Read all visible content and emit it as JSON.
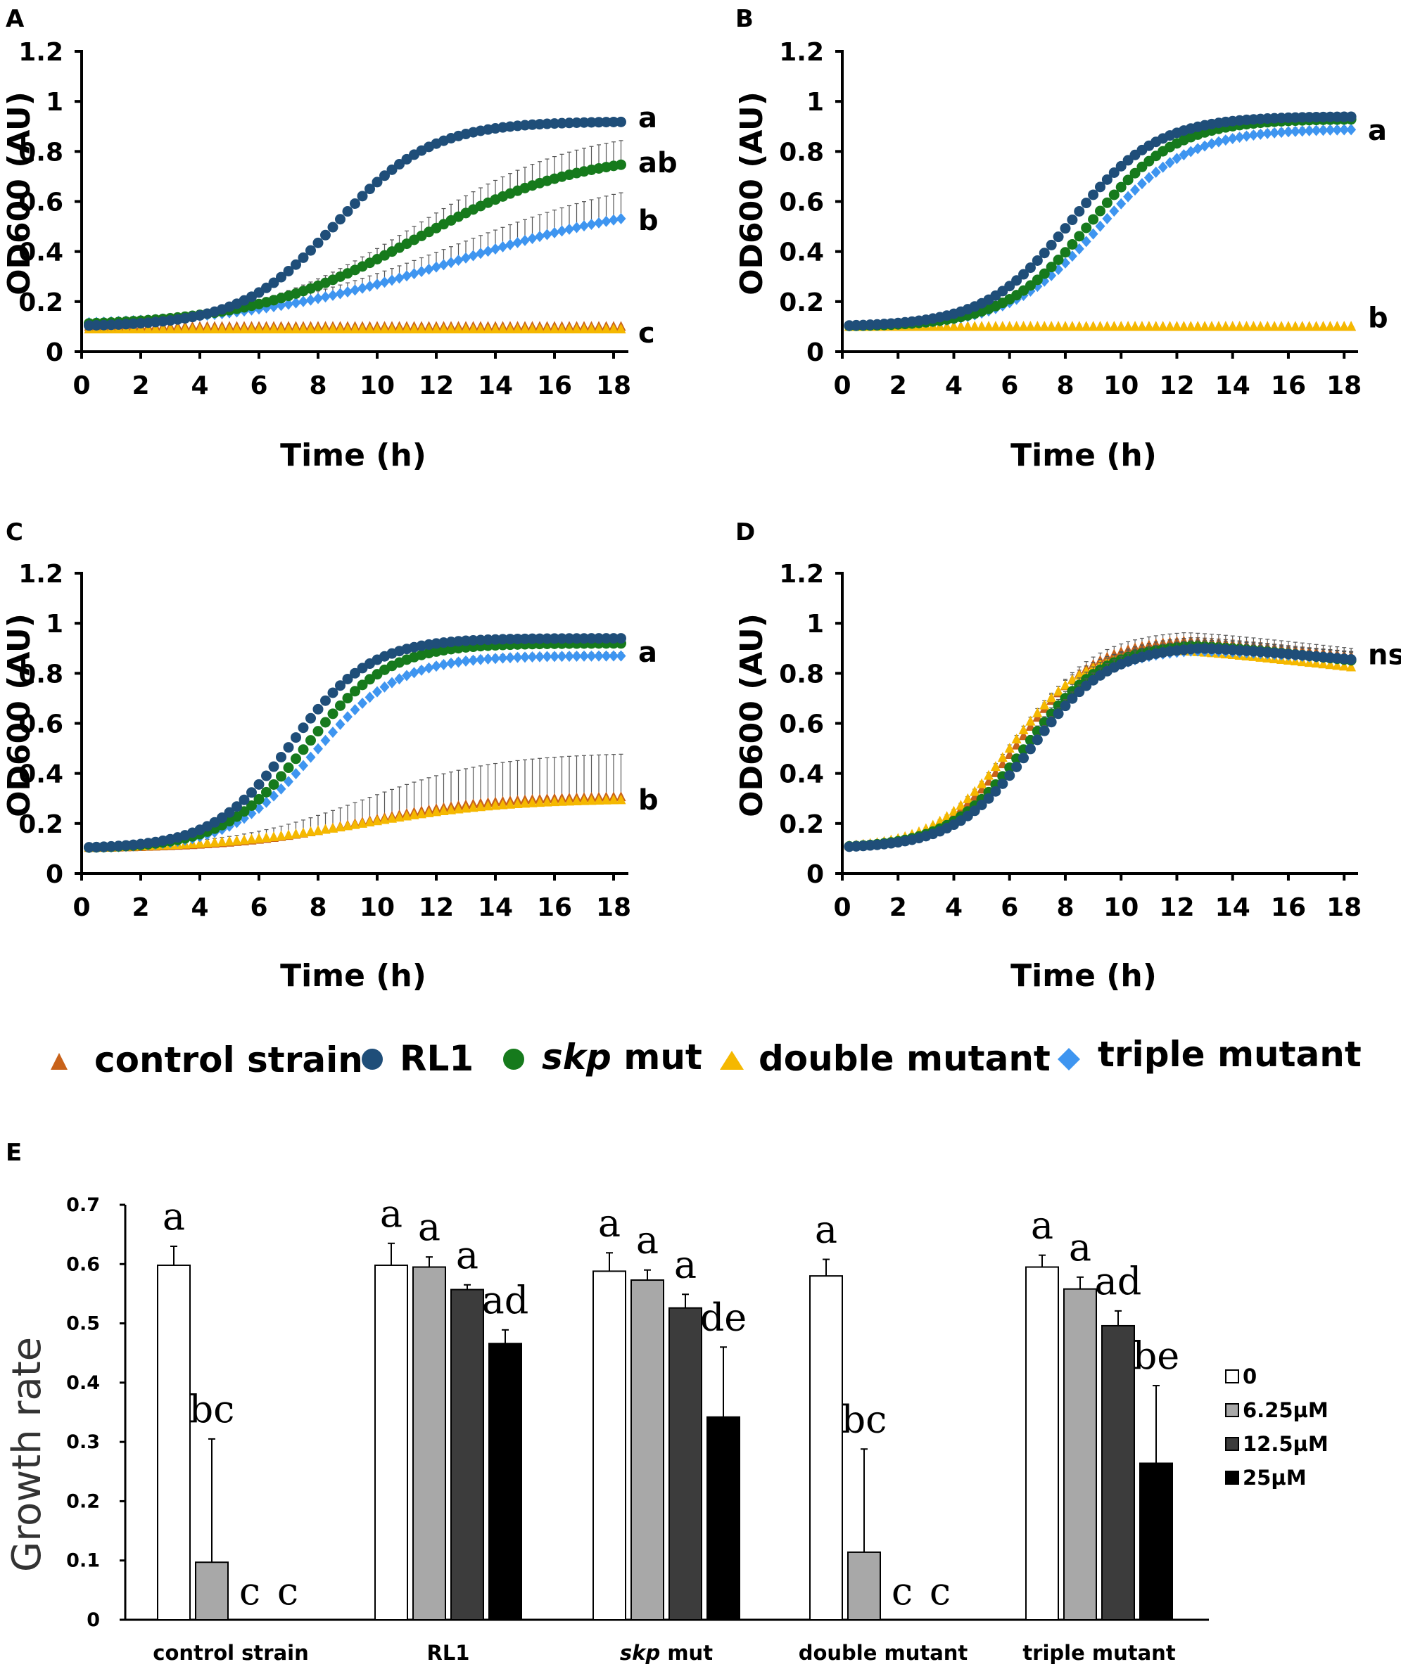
{
  "legend": [
    {
      "label": "control strain",
      "color": "#C8621A",
      "marker": "triangle"
    },
    {
      "label": "RL1",
      "color": "#1F4E79",
      "marker": "circle"
    },
    {
      "label": "skp mut",
      "color": "#167A1C",
      "marker": "circle",
      "italic_part": "skp",
      "rest": " mut"
    },
    {
      "label": "double mutant",
      "color": "#F5B800",
      "marker": "triangle"
    },
    {
      "label": "triple mutant",
      "color": "#3E95F0",
      "marker": "diamond"
    }
  ],
  "chart_data": [
    {
      "type": "line",
      "panel": "A",
      "xlabel": "Time (h)",
      "ylabel": "OD600 (AU)",
      "xlim": [
        0,
        18.5
      ],
      "ylim": [
        0,
        1.2
      ],
      "xticks": [
        "0",
        "2",
        "4",
        "6",
        "8",
        "10",
        "12",
        "14",
        "16",
        "18"
      ],
      "yticks": [
        "0",
        "0.2",
        "0.4",
        "0.6",
        "0.8",
        "1",
        "1.2"
      ],
      "series": [
        {
          "name": "control strain",
          "base": 0.1,
          "max": 0.1,
          "mid": 30,
          "k": 1,
          "err": 0
        },
        {
          "name": "RL1",
          "base": 0.1,
          "max": 0.92,
          "mid": 8.6,
          "k": 0.62,
          "err": 0.008
        },
        {
          "name": "skp mut",
          "base": 0.1,
          "max": 0.8,
          "mid": 11.3,
          "k": 0.36,
          "err": 0.1
        },
        {
          "name": "double mutant",
          "base": 0.09,
          "max": 0.09,
          "mid": 30,
          "k": 1,
          "err": 0
        },
        {
          "name": "triple mutant",
          "base": 0.1,
          "max": 0.62,
          "mid": 12.6,
          "k": 0.28,
          "err": 0.12
        }
      ],
      "annotations": [
        {
          "text": "a",
          "y": 0.93
        },
        {
          "text": "ab",
          "y": 0.75
        },
        {
          "text": "b",
          "y": 0.52
        },
        {
          "text": "c",
          "y": 0.07
        }
      ]
    },
    {
      "type": "line",
      "panel": "B",
      "xlabel": "Time (h)",
      "ylabel": "OD600 (AU)",
      "xlim": [
        0,
        18.5
      ],
      "ylim": [
        0,
        1.2
      ],
      "xticks": [
        "0",
        "2",
        "4",
        "6",
        "8",
        "10",
        "12",
        "14",
        "16",
        "18"
      ],
      "yticks": [
        "0",
        "0.2",
        "0.4",
        "0.6",
        "0.8",
        "1",
        "1.2"
      ],
      "series": [
        {
          "name": "control strain",
          "base": 0.1,
          "max": 0.1,
          "mid": 30,
          "k": 1,
          "err": 0
        },
        {
          "name": "RL1",
          "base": 0.1,
          "max": 0.94,
          "mid": 8.2,
          "k": 0.65,
          "err": 0.01
        },
        {
          "name": "skp mut",
          "base": 0.1,
          "max": 0.93,
          "mid": 8.9,
          "k": 0.65,
          "err": 0.01
        },
        {
          "name": "double mutant",
          "base": 0.1,
          "max": 0.1,
          "mid": 30,
          "k": 1,
          "err": 0
        },
        {
          "name": "triple mutant",
          "base": 0.1,
          "max": 0.89,
          "mid": 9.2,
          "k": 0.62,
          "err": 0.01
        }
      ],
      "annotations": [
        {
          "text": "a",
          "y": 0.88
        },
        {
          "text": "b",
          "y": 0.13
        }
      ]
    },
    {
      "type": "line",
      "panel": "C",
      "xlabel": "Time (h)",
      "ylabel": "OD600 (AU)",
      "xlim": [
        0,
        18.5
      ],
      "ylim": [
        0,
        1.2
      ],
      "xticks": [
        "0",
        "2",
        "4",
        "6",
        "8",
        "10",
        "12",
        "14",
        "16",
        "18"
      ],
      "yticks": [
        "0",
        "0.2",
        "0.4",
        "0.6",
        "0.8",
        "1",
        "1.2"
      ],
      "series": [
        {
          "name": "control strain",
          "base": 0.1,
          "max": 0.31,
          "mid": 9.5,
          "k": 0.45,
          "err": 0.17
        },
        {
          "name": "RL1",
          "base": 0.1,
          "max": 0.94,
          "mid": 7.1,
          "k": 0.75,
          "err": 0.01
        },
        {
          "name": "skp mut",
          "base": 0.1,
          "max": 0.92,
          "mid": 7.6,
          "k": 0.72,
          "err": 0.01
        },
        {
          "name": "double mutant",
          "base": 0.1,
          "max": 0.3,
          "mid": 9.5,
          "k": 0.4,
          "err": 0
        },
        {
          "name": "triple mutant",
          "base": 0.1,
          "max": 0.87,
          "mid": 7.9,
          "k": 0.7,
          "err": 0.01
        }
      ],
      "annotations": [
        {
          "text": "a",
          "y": 0.88
        },
        {
          "text": "b",
          "y": 0.29
        }
      ]
    },
    {
      "type": "line",
      "panel": "D",
      "xlabel": "Time (h)",
      "ylabel": "OD600 (AU)",
      "xlim": [
        0,
        18.5
      ],
      "ylim": [
        0,
        1.2
      ],
      "xticks": [
        "0",
        "2",
        "4",
        "6",
        "8",
        "10",
        "12",
        "14",
        "16",
        "18"
      ],
      "yticks": [
        "0",
        "0.2",
        "0.4",
        "0.6",
        "0.8",
        "1",
        "1.2"
      ],
      "series": [
        {
          "name": "control strain",
          "base": 0.1,
          "max": 0.94,
          "mid": 6.3,
          "k": 0.72,
          "err": 0.03,
          "decay": 0.012
        },
        {
          "name": "RL1",
          "base": 0.1,
          "max": 0.91,
          "mid": 6.8,
          "k": 0.72,
          "err": 0.03,
          "decay": 0.01
        },
        {
          "name": "skp mut",
          "base": 0.1,
          "max": 0.92,
          "mid": 6.6,
          "k": 0.72,
          "err": 0.03,
          "decay": 0.012
        },
        {
          "name": "double mutant",
          "base": 0.1,
          "max": 0.9,
          "mid": 6.0,
          "k": 0.74,
          "err": 0.02,
          "decay": 0.012
        },
        {
          "name": "triple mutant",
          "base": 0.1,
          "max": 0.9,
          "mid": 6.6,
          "k": 0.72,
          "err": 0.03,
          "decay": 0.008
        }
      ],
      "annotations": [
        {
          "text": "ns",
          "y": 0.87
        }
      ]
    },
    {
      "type": "bar",
      "panel": "E",
      "ylabel": "Growth rate",
      "ylim": [
        0,
        0.7
      ],
      "yticks": [
        "0",
        "0.1",
        "0.2",
        "0.3",
        "0.4",
        "0.5",
        "0.6",
        "0.7"
      ],
      "categories": [
        "control strain",
        "RL1",
        "skp mut",
        "double mutant",
        "triple mutant"
      ],
      "series": [
        {
          "name": "0",
          "color": "#FFFFFF",
          "values": [
            0.598,
            0.598,
            0.588,
            0.58,
            0.595
          ],
          "errors": [
            0.032,
            0.037,
            0.031,
            0.028,
            0.02
          ],
          "letters": [
            "a",
            "a",
            "a",
            "a",
            "a"
          ]
        },
        {
          "name": "6.25µM",
          "color": "#A8A8A8",
          "values": [
            0.097,
            0.595,
            0.573,
            0.114,
            0.558
          ],
          "errors": [
            0.208,
            0.017,
            0.017,
            0.174,
            0.02
          ],
          "letters": [
            "bc",
            "a",
            "a",
            "bc",
            "a"
          ]
        },
        {
          "name": "12.5µM",
          "color": "#3C3C3C",
          "values": [
            0,
            0.557,
            0.526,
            0,
            0.496
          ],
          "errors": [
            0,
            0.008,
            0.023,
            0,
            0.025
          ],
          "letters": [
            "c",
            "a",
            "a",
            "c",
            "ad"
          ]
        },
        {
          "name": "25µM",
          "color": "#000000",
          "values": [
            0,
            0.466,
            0.342,
            0,
            0.264
          ],
          "errors": [
            0,
            0.023,
            0.118,
            0,
            0.131
          ],
          "letters": [
            "c",
            "ad",
            "de",
            "c",
            "be"
          ]
        }
      ]
    }
  ]
}
